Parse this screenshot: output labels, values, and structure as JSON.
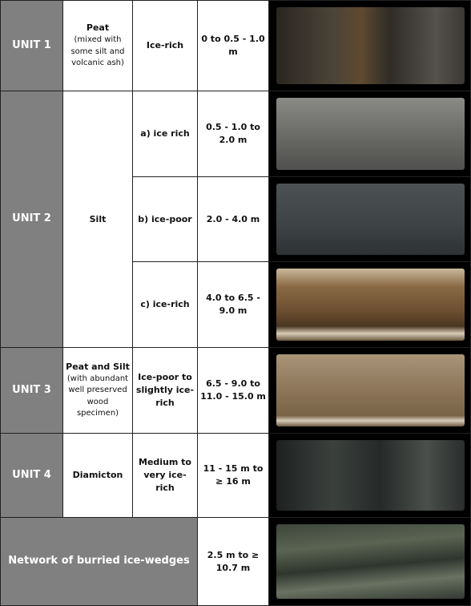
{
  "table": {
    "rows": [
      {
        "unit": "UNIT 1",
        "material": "Peat",
        "material_note": "(mixed with some silt and volcanic ash)",
        "subunits": [
          {
            "ice": "Ice-rich",
            "depth": "0 to 0.5 - 1.0 m"
          }
        ]
      },
      {
        "unit": "UNIT 2",
        "material": "Silt",
        "subunits": [
          {
            "ice": "a) ice rich",
            "depth": "0.5 - 1.0 to 2.0 m"
          },
          {
            "ice": "b) ice-poor",
            "depth": "2.0 - 4.0 m"
          },
          {
            "ice": "c) ice-rich",
            "depth": "4.0 to 6.5 - 9.0 m"
          }
        ]
      },
      {
        "unit": "UNIT 3",
        "material": "Peat and Silt",
        "material_note": "(with abundant well preserved wood specimen)",
        "subunits": [
          {
            "ice": "Ice-poor to slightly ice-rich",
            "depth": "6.5 - 9.0 to 11.0 - 15.0 m"
          }
        ]
      },
      {
        "unit": "UNIT 4",
        "material": "Diamicton",
        "subunits": [
          {
            "ice": "Medium to very ice-rich",
            "depth": "11 - 15 m to ≥ 16 m"
          }
        ]
      }
    ],
    "footer_row": {
      "label": "Network of burried ice-wedges",
      "depth": "2.5 m to ≥ 10.7 m"
    }
  }
}
